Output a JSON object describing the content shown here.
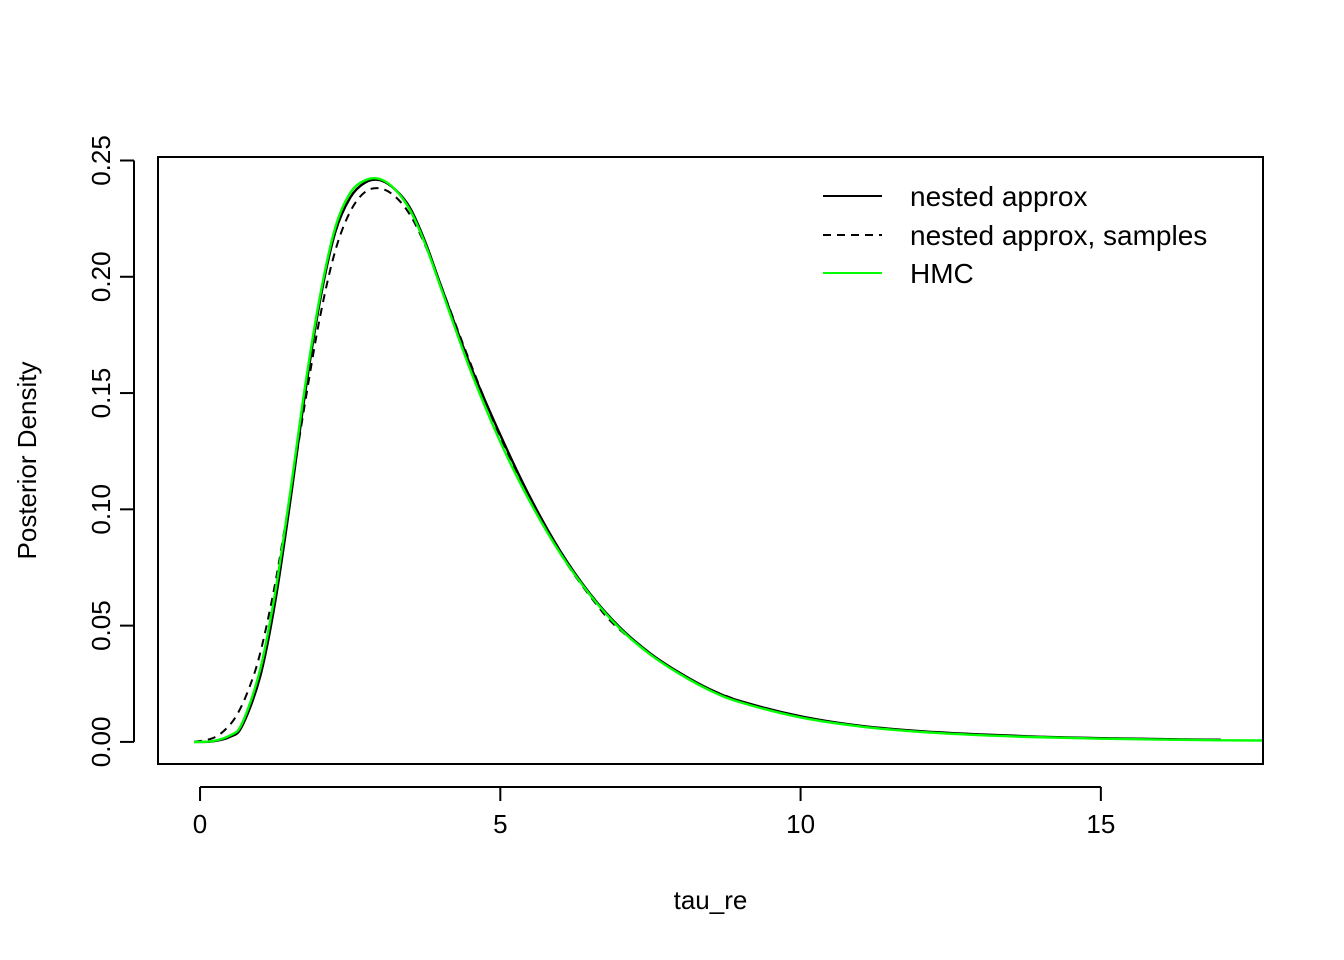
{
  "chart_data": {
    "type": "line",
    "title": "",
    "xlabel": "tau_re",
    "ylabel": "Posterior Density",
    "xlim": [
      -0.7,
      17.7
    ],
    "ylim": [
      -0.0095,
      0.2515
    ],
    "xticks": [
      0,
      5,
      10,
      15
    ],
    "xtick_labels": [
      "0",
      "5",
      "10",
      "15"
    ],
    "yticks": [
      0.0,
      0.05,
      0.1,
      0.15,
      0.2,
      0.25
    ],
    "ytick_labels": [
      "0.00",
      "0.05",
      "0.10",
      "0.15",
      "0.20",
      "0.25"
    ],
    "grid": false,
    "legend_position": "top-right",
    "series": [
      {
        "name": "nested approx",
        "color": "#000000",
        "dash": "solid",
        "x": [
          -0.1,
          0.2,
          0.5,
          0.7,
          1.0,
          1.25,
          1.5,
          1.75,
          2.0,
          2.25,
          2.5,
          2.75,
          3.0,
          3.25,
          3.5,
          3.75,
          4.0,
          4.5,
          5.0,
          5.5,
          6.0,
          6.5,
          7.0,
          7.5,
          8.0,
          8.5,
          9.0,
          10.0,
          11.0,
          12.0,
          13.0,
          14.0,
          15.0,
          16.0,
          17.0
        ],
        "y": [
          0.0,
          0.0002,
          0.0022,
          0.0068,
          0.028,
          0.06,
          0.103,
          0.15,
          0.19,
          0.219,
          0.234,
          0.2405,
          0.2415,
          0.2375,
          0.2295,
          0.215,
          0.197,
          0.162,
          0.132,
          0.105,
          0.082,
          0.0635,
          0.049,
          0.038,
          0.0295,
          0.0225,
          0.0175,
          0.011,
          0.0069,
          0.0046,
          0.0032,
          0.0022,
          0.0016,
          0.0012,
          0.0009
        ]
      },
      {
        "name": "nested approx, samples",
        "color": "#000000",
        "dash": "dashed",
        "x": [
          -0.1,
          0.2,
          0.4,
          0.6,
          0.8,
          1.0,
          1.25,
          1.5,
          1.75,
          2.0,
          2.25,
          2.5,
          2.75,
          3.0,
          3.25,
          3.5,
          3.75,
          4.0,
          4.5,
          5.0,
          5.5,
          6.0,
          6.5,
          7.0,
          8.0,
          9.0,
          10.0,
          11.0,
          12.0,
          13.0,
          14.0,
          15.0,
          16.0,
          17.0
        ],
        "y": [
          0.0,
          0.0015,
          0.0048,
          0.011,
          0.022,
          0.038,
          0.068,
          0.106,
          0.146,
          0.183,
          0.211,
          0.228,
          0.2365,
          0.238,
          0.2345,
          0.2265,
          0.2135,
          0.197,
          0.163,
          0.131,
          0.104,
          0.081,
          0.0625,
          0.048,
          0.029,
          0.0175,
          0.011,
          0.0069,
          0.0046,
          0.0032,
          0.0022,
          0.0016,
          0.0012,
          0.0009
        ]
      },
      {
        "name": "HMC",
        "color": "#00ff00",
        "dash": "solid",
        "x": [
          -0.1,
          0.2,
          0.5,
          0.7,
          1.0,
          1.25,
          1.5,
          1.75,
          2.0,
          2.25,
          2.5,
          2.75,
          3.0,
          3.25,
          3.5,
          3.75,
          4.0,
          4.5,
          5.0,
          5.5,
          6.0,
          6.5,
          7.0,
          7.5,
          8.0,
          8.5,
          9.0,
          10.0,
          11.0,
          12.0,
          13.0,
          14.0,
          15.0,
          16.0,
          17.0,
          17.7
        ],
        "y": [
          0.0,
          0.0003,
          0.0028,
          0.008,
          0.031,
          0.064,
          0.107,
          0.153,
          0.192,
          0.221,
          0.236,
          0.2415,
          0.242,
          0.2375,
          0.2285,
          0.214,
          0.196,
          0.16,
          0.129,
          0.103,
          0.081,
          0.063,
          0.0485,
          0.0375,
          0.029,
          0.022,
          0.017,
          0.0105,
          0.0066,
          0.0043,
          0.0029,
          0.002,
          0.0014,
          0.001,
          0.0007,
          0.0006
        ]
      }
    ]
  }
}
